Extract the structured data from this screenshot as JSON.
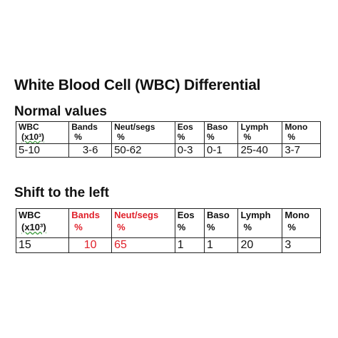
{
  "title": "White Blood Cell (WBC) Differential",
  "sections": {
    "normal": {
      "heading": "Normal values",
      "headers": [
        {
          "line1": "WBC",
          "line2": "(x10³)"
        },
        {
          "line1": "Bands",
          "line2": "%"
        },
        {
          "line1": "Neut/segs",
          "line2": "%"
        },
        {
          "line1": "Eos",
          "line2": "%"
        },
        {
          "line1": "Baso",
          "line2": "%"
        },
        {
          "line1": "Lymph",
          "line2": "%"
        },
        {
          "line1": "Mono",
          "line2": "%"
        }
      ],
      "values": [
        "5-10",
        "3-6",
        "50-62",
        "0-3",
        "0-1",
        "25-40",
        "3-7"
      ]
    },
    "shift": {
      "heading": "Shift to the left",
      "headers": [
        {
          "line1": "WBC",
          "line2": "(x10³)"
        },
        {
          "line1": "Bands",
          "line2": "%"
        },
        {
          "line1": "Neut/segs",
          "line2": "%"
        },
        {
          "line1": "Eos",
          "line2": "%"
        },
        {
          "line1": "Baso",
          "line2": "%"
        },
        {
          "line1": "Lymph",
          "line2": "%"
        },
        {
          "line1": "Mono",
          "line2": "%"
        }
      ],
      "values": [
        "15",
        "10",
        "65",
        "1",
        "1",
        "20",
        "3"
      ]
    }
  },
  "colors": {
    "highlight": "#e0202a",
    "text": "#111111",
    "border": "#222222"
  }
}
